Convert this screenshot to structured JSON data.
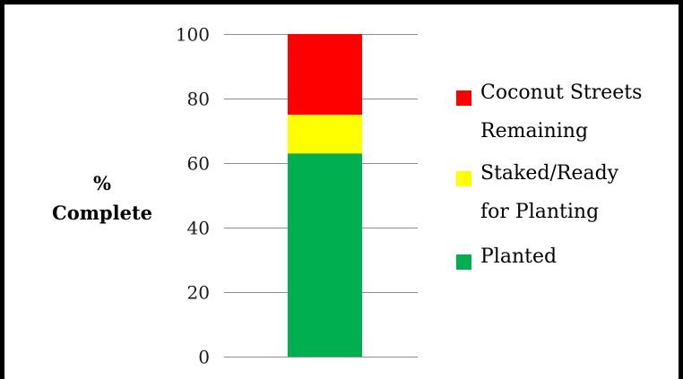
{
  "chart_data": {
    "type": "bar",
    "stacked": true,
    "categories": [
      ""
    ],
    "ylabel_lines": [
      "%",
      "Complete"
    ],
    "ylim": [
      0,
      100
    ],
    "yticks": [
      0,
      20,
      40,
      60,
      80,
      100
    ],
    "grid": true,
    "legend_position": "right",
    "series": [
      {
        "name": "Planted",
        "name_lines": [
          "Planted"
        ],
        "values": [
          63
        ],
        "color": "#00b050"
      },
      {
        "name": "Staked/Ready for Planting",
        "name_lines": [
          "Staked/Ready",
          "for Planting"
        ],
        "values": [
          12
        ],
        "color": "#ffff00"
      },
      {
        "name": "Coconut Streets Remaining",
        "name_lines": [
          "Coconut Streets",
          "Remaining"
        ],
        "values": [
          25
        ],
        "color": "#ff0000"
      }
    ]
  }
}
